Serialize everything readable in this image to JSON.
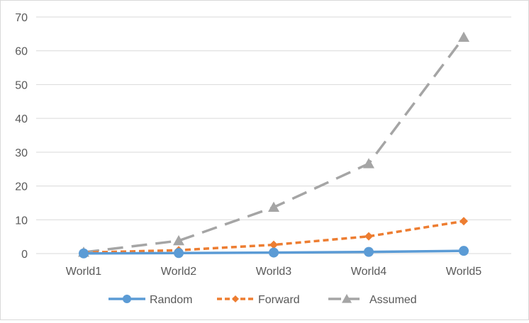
{
  "chart_data": {
    "type": "line",
    "categories": [
      "World1",
      "World2",
      "World3",
      "World4",
      "World5"
    ],
    "series": [
      {
        "name": "Random",
        "values": [
          0.05,
          0.15,
          0.3,
          0.5,
          0.8
        ],
        "color": "#5b9bd5",
        "marker": "circle",
        "dash": "solid"
      },
      {
        "name": "Forward",
        "values": [
          0.3,
          1.0,
          2.6,
          5.1,
          9.6
        ],
        "color": "#ed7d31",
        "marker": "diamond",
        "dash": "short-dash"
      },
      {
        "name": "Assumed",
        "values": [
          0.4,
          3.8,
          13.7,
          26.6,
          64.0
        ],
        "color": "#a5a5a5",
        "marker": "triangle",
        "dash": "long-dash"
      }
    ],
    "yticks": [
      0,
      10,
      20,
      30,
      40,
      50,
      60,
      70
    ],
    "ylim": [
      0,
      70
    ],
    "grid": true,
    "legend": "bottom"
  }
}
